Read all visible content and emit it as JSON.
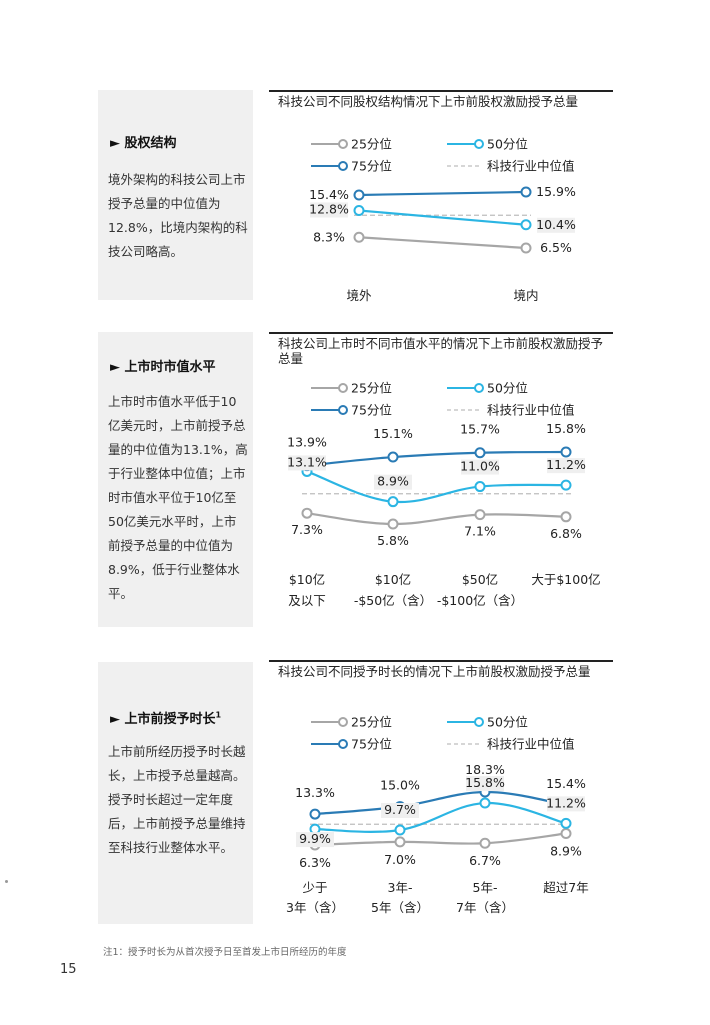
{
  "sections": [
    {
      "title": "股权结构",
      "title_sup": "",
      "body": "境外架构的科技公司上市授予总量的中位值为12.8%，比境内架构的科技公司略高。"
    },
    {
      "title": "上市时市值水平",
      "title_sup": "",
      "body": "上市时市值水平低于10亿美元时，上市前授予总量的中位值为13.1%，高于行业整体中位值；上市时市值水平位于10亿至50亿美元水平时，上市前授予总量的中位值为8.9%，低于行业整体水平。"
    },
    {
      "title": "上市前授予时长",
      "title_sup": "1",
      "body": "上市前所经历授予时长越长，上市授予总量越高。授予时长超过一定年度后，上市前授予总量维持至科技行业整体水平。"
    }
  ],
  "footnote": "注1：授予时长为从首次授予日至首发上市日所经历的年度",
  "page_number": "15",
  "colors": {
    "p25": "#a6a6a6",
    "p50": "#2bb5e3",
    "p75": "#2a7bb5",
    "median": "#bdbdbd"
  },
  "chart_data": [
    {
      "type": "line",
      "title": "科技公司不同股权结构情况下上市前股权激励授予总量",
      "categories": [
        "境外",
        "境内"
      ],
      "series": [
        {
          "name": "25分位",
          "values": [
            8.3,
            6.5
          ],
          "labels": [
            "8.3%",
            "6.5%"
          ]
        },
        {
          "name": "50分位",
          "values": [
            12.8,
            10.4
          ],
          "labels": [
            "12.8%",
            "10.4%"
          ]
        },
        {
          "name": "75分位",
          "values": [
            15.4,
            15.9
          ],
          "labels": [
            "15.4%",
            "15.9%"
          ]
        }
      ],
      "reference_line": {
        "name": "科技行业中位值"
      },
      "legend": "top"
    },
    {
      "type": "line",
      "title": "科技公司上市时不同市值水平的情况下上市前股权激励授予总量",
      "categories": [
        "$10亿及以下",
        "$10亿-$50亿（含）",
        "$50亿-$100亿（含）",
        "大于$100亿"
      ],
      "category_lines": [
        [
          "$10亿",
          "及以下"
        ],
        [
          "$10亿",
          "-$50亿（含）"
        ],
        [
          "$50亿",
          "-$100亿（含）"
        ],
        [
          "大于$100亿",
          ""
        ]
      ],
      "series": [
        {
          "name": "25分位",
          "values": [
            7.3,
            5.8,
            7.1,
            6.8
          ],
          "labels": [
            "7.3%",
            "5.8%",
            "7.1%",
            "6.8%"
          ]
        },
        {
          "name": "50分位",
          "values": [
            13.1,
            8.9,
            11.0,
            11.2
          ],
          "labels": [
            "13.1%",
            "8.9%",
            "11.0%",
            "11.2%"
          ]
        },
        {
          "name": "75分位",
          "values": [
            13.9,
            15.1,
            15.7,
            15.8
          ],
          "labels": [
            "13.9%",
            "15.1%",
            "15.7%",
            "15.8%"
          ]
        }
      ],
      "reference_line": {
        "name": "科技行业中位值"
      },
      "legend": "top"
    },
    {
      "type": "line",
      "title": "科技公司不同授予时长的情况下上市前股权激励授予总量",
      "categories": [
        "少于3年（含）",
        "3年-5年（含）",
        "5年-7年（含）",
        "超过7年"
      ],
      "category_lines": [
        [
          "少于",
          "3年（含）"
        ],
        [
          "3年-",
          "5年（含）"
        ],
        [
          "5年-",
          "7年（含）"
        ],
        [
          "超过7年",
          ""
        ]
      ],
      "series": [
        {
          "name": "25分位",
          "values": [
            6.3,
            7.0,
            6.7,
            8.9
          ],
          "labels": [
            "6.3%",
            "7.0%",
            "6.7%",
            "8.9%"
          ]
        },
        {
          "name": "50分位",
          "values": [
            9.9,
            9.7,
            15.8,
            11.2
          ],
          "labels": [
            "9.9%",
            "9.7%",
            "15.8%",
            "11.2%"
          ]
        },
        {
          "name": "75分位",
          "values": [
            13.3,
            15.0,
            18.3,
            15.4
          ],
          "labels": [
            "13.3%",
            "15.0%",
            "18.3%",
            "15.4%"
          ]
        }
      ],
      "reference_line": {
        "name": "科技行业中位值"
      },
      "legend": "top"
    }
  ]
}
